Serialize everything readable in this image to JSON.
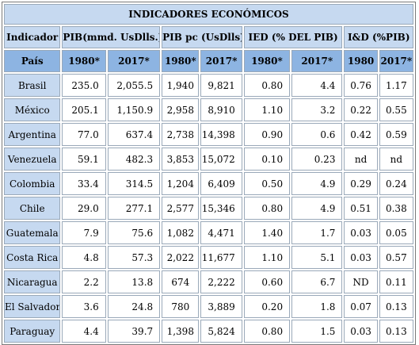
{
  "title": "INDICADORES ECONÓMICOS",
  "headers": {
    "indicador": "Indicador",
    "pib": "PIB(mmd. UsDlls.)",
    "pibpc": "PIB pc (UsDlls)",
    "ied": "IED (% DEL PIB)",
    "id": "I&D (%PIB)"
  },
  "subheaders": {
    "pais": "País",
    "pib_1980": "1980*",
    "pib_2017": "2017*",
    "pibpc_1980": "1980*",
    "pibpc_2017": "2017*",
    "ied_1980": "1980*",
    "ied_2017": "2017*",
    "id_1980": "1980",
    "id_2017": "2017*"
  },
  "rows": [
    {
      "pais": "Brasil",
      "pib_1980": "235.0",
      "pib_2017": "2,055.5",
      "pibpc_1980": "1,940",
      "pibpc_2017": "9,821",
      "ied_1980": "0.80",
      "ied_2017": "4.4",
      "id_1980": "0.76",
      "id_2017": "1.17"
    },
    {
      "pais": "México",
      "pib_1980": "205.1",
      "pib_2017": "1,150.9",
      "pibpc_1980": "2,958",
      "pibpc_2017": "8,910",
      "ied_1980": "1.10",
      "ied_2017": "3.2",
      "id_1980": "0.22",
      "id_2017": "0.55"
    },
    {
      "pais": "Argentina",
      "pib_1980": "77.0",
      "pib_2017": "637.4",
      "pibpc_1980": "2,738",
      "pibpc_2017": "14,398",
      "ied_1980": "0.90",
      "ied_2017": "0.6",
      "id_1980": "0.42",
      "id_2017": "0.59"
    },
    {
      "pais": "Venezuela",
      "pib_1980": "59.1",
      "pib_2017": "482.3",
      "pibpc_1980": "3,853",
      "pibpc_2017": "15,072",
      "ied_1980": "0.10",
      "ied_2017": "0.23",
      "id_1980": "nd",
      "id_2017": "nd"
    },
    {
      "pais": "Colombia",
      "pib_1980": "33.4",
      "pib_2017": "314.5",
      "pibpc_1980": "1,204",
      "pibpc_2017": "6,409",
      "ied_1980": "0.50",
      "ied_2017": "4.9",
      "id_1980": "0.29",
      "id_2017": "0.24"
    },
    {
      "pais": "Chile",
      "pib_1980": "29.0",
      "pib_2017": "277.1",
      "pibpc_1980": "2,577",
      "pibpc_2017": "15,346",
      "ied_1980": "0.80",
      "ied_2017": "4.9",
      "id_1980": "0.51",
      "id_2017": "0.38"
    },
    {
      "pais": "Guatemala",
      "pib_1980": "7.9",
      "pib_2017": "75.6",
      "pibpc_1980": "1,082",
      "pibpc_2017": "4,471",
      "ied_1980": "1.40",
      "ied_2017": "1.7",
      "id_1980": "0.03",
      "id_2017": "0.05"
    },
    {
      "pais": "Costa Rica",
      "pib_1980": "4.8",
      "pib_2017": "57.3",
      "pibpc_1980": "2,022",
      "pibpc_2017": "11,677",
      "ied_1980": "1.10",
      "ied_2017": "5.1",
      "id_1980": "0.03",
      "id_2017": "0.57"
    },
    {
      "pais": "Nicaragua",
      "pib_1980": "2.2",
      "pib_2017": "13.8",
      "pibpc_1980": "674",
      "pibpc_2017": "2,222",
      "ied_1980": "0.60",
      "ied_2017": "6.7",
      "id_1980": "ND",
      "id_2017": "0.11"
    },
    {
      "pais": "El Salvador",
      "pib_1980": "3.6",
      "pib_2017": "24.8",
      "pibpc_1980": "780",
      "pibpc_2017": "3,889",
      "ied_1980": "0.20",
      "ied_2017": "1.8",
      "id_1980": "0.07",
      "id_2017": "0.13"
    },
    {
      "pais": "Paraguay",
      "pib_1980": "4.4",
      "pib_2017": "39.7",
      "pibpc_1980": "1,398",
      "pibpc_2017": "5,824",
      "ied_1980": "0.80",
      "ied_2017": "1.5",
      "id_1980": "0.03",
      "id_2017": "0.13"
    }
  ]
}
